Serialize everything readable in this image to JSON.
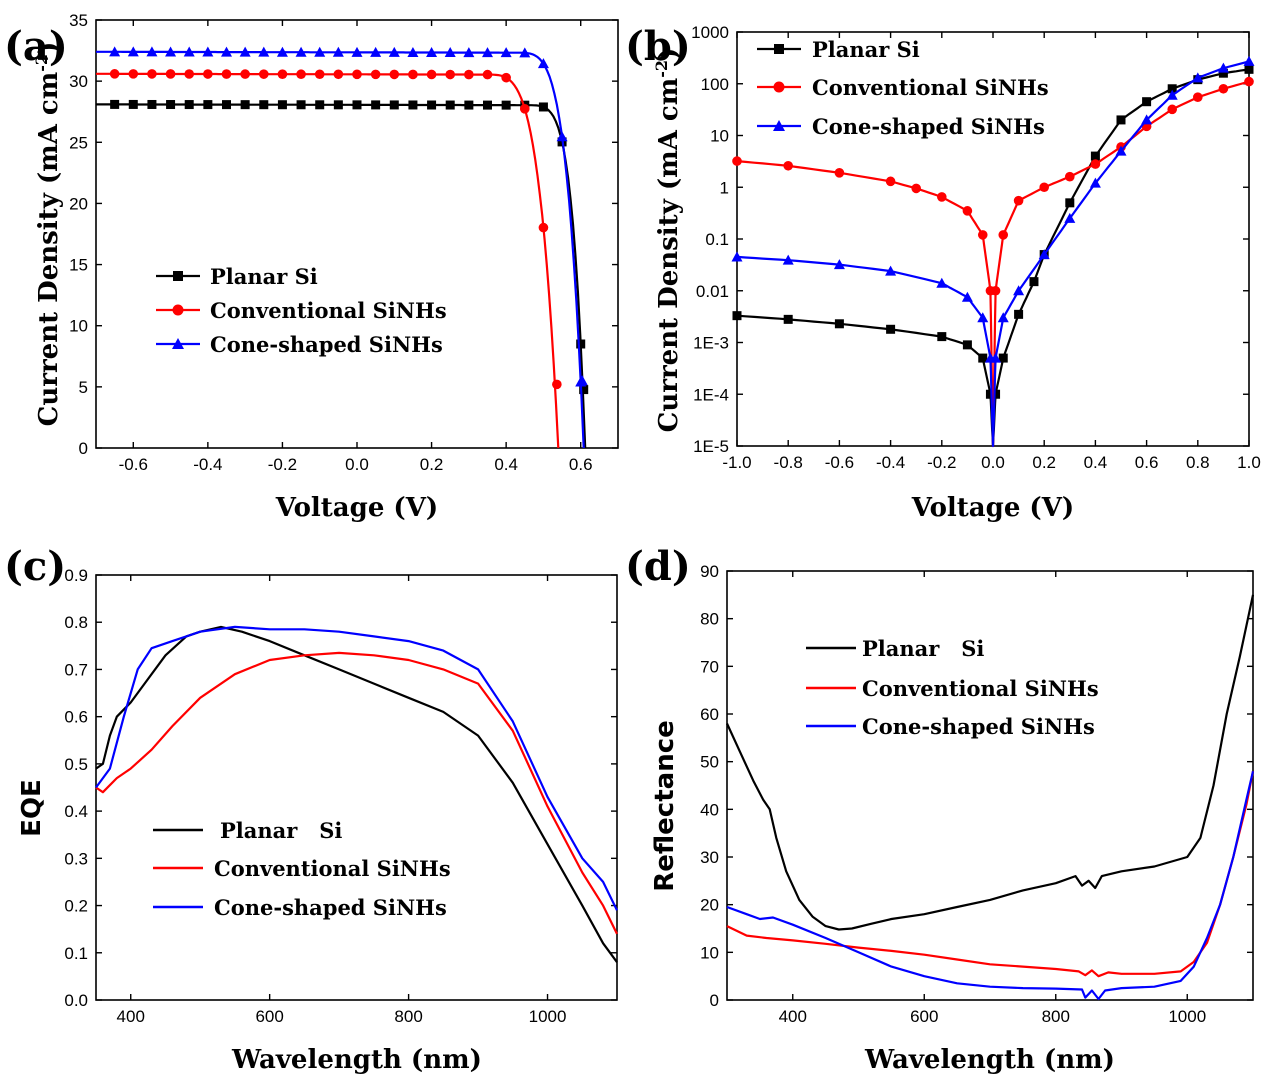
{
  "chart_data": [
    {
      "panel": "(a)",
      "type": "line",
      "xlabel": "Voltage (V)",
      "ylabel": "Current Density (mA cm",
      "ylabel_sup": "-2",
      "ylabel_end": ")",
      "xlim": [
        -0.7,
        0.7
      ],
      "ylim": [
        0,
        35
      ],
      "xticks": [
        -0.6,
        -0.4,
        -0.2,
        0.0,
        0.2,
        0.4,
        0.6
      ],
      "xtick_labels": [
        "-0.6",
        "-0.4",
        "-0.2",
        "0.0",
        "0.2",
        "0.4",
        "0.6"
      ],
      "yticks": [
        0,
        5,
        10,
        15,
        20,
        25,
        30,
        35
      ],
      "ytick_labels": [
        "0",
        "5",
        "10",
        "15",
        "20",
        "25",
        "30",
        "35"
      ],
      "legend": "center-left",
      "series": [
        {
          "name": "Planar Si",
          "color": "#000000",
          "marker": "square",
          "curve": {
            "jsc": 28.1,
            "voc": 0.612,
            "v0": 0.44,
            "n": 5.0,
            "m": 3.5
          }
        },
        {
          "name": "Conventional SiNHs",
          "color": "#ff0000",
          "marker": "circle",
          "curve": {
            "jsc": 30.6,
            "voc": 0.54,
            "v0": 0.34,
            "n": 4.0,
            "m": 3.0
          }
        },
        {
          "name": "Cone-shaped SiNHs",
          "color": "#0000ff",
          "marker": "triangle",
          "curve": {
            "jsc": 32.4,
            "voc": 0.608,
            "v0": 0.42,
            "n": 4.2,
            "m": 3.0
          }
        }
      ]
    },
    {
      "panel": "(b)",
      "type": "line",
      "yscale": "log",
      "xlabel": "Voltage (V)",
      "ylabel": "Current Density (mA cm",
      "ylabel_sup": "-2",
      "ylabel_end": ")",
      "xlim": [
        -1.0,
        1.0
      ],
      "ylim": [
        1e-05,
        1000
      ],
      "xticks": [
        -1.0,
        -0.8,
        -0.6,
        -0.4,
        -0.2,
        0.0,
        0.2,
        0.4,
        0.6,
        0.8,
        1.0
      ],
      "xtick_labels": [
        "-1.0",
        "-0.8",
        "-0.6",
        "-0.4",
        "-0.2",
        "0.0",
        "0.2",
        "0.4",
        "0.6",
        "0.8",
        "1.0"
      ],
      "yticks": [
        1e-05,
        0.0001,
        0.001,
        0.01,
        0.1,
        1,
        10,
        100,
        1000
      ],
      "ytick_labels": [
        "1E-5",
        "1E-4",
        "1E-3",
        "0.01",
        "0.1",
        "1",
        "10",
        "100",
        "1000"
      ],
      "legend": "top-left",
      "series": [
        {
          "name": "Planar Si",
          "color": "#000000",
          "marker": "square",
          "points": [
            [
              -1.0,
              0.0033
            ],
            [
              -0.8,
              0.0028
            ],
            [
              -0.6,
              0.0023
            ],
            [
              -0.4,
              0.0018
            ],
            [
              -0.2,
              0.0013
            ],
            [
              -0.1,
              0.0009
            ],
            [
              -0.04,
              0.0005
            ],
            [
              -0.01,
              0.0001
            ],
            [
              0.0,
              1e-05
            ],
            [
              0.01,
              0.0001
            ],
            [
              0.04,
              0.0005
            ],
            [
              0.1,
              0.0035
            ],
            [
              0.16,
              0.015
            ],
            [
              0.2,
              0.05
            ],
            [
              0.3,
              0.5
            ],
            [
              0.4,
              4.0
            ],
            [
              0.5,
              20
            ],
            [
              0.6,
              45
            ],
            [
              0.7,
              80
            ],
            [
              0.8,
              120
            ],
            [
              0.9,
              160
            ],
            [
              1.0,
              190
            ]
          ]
        },
        {
          "name": "Conventional SiNHs",
          "color": "#ff0000",
          "marker": "circle",
          "points": [
            [
              -1.0,
              3.2
            ],
            [
              -0.8,
              2.6
            ],
            [
              -0.6,
              1.9
            ],
            [
              -0.4,
              1.3
            ],
            [
              -0.3,
              0.95
            ],
            [
              -0.2,
              0.65
            ],
            [
              -0.1,
              0.35
            ],
            [
              -0.04,
              0.12
            ],
            [
              -0.01,
              0.01
            ],
            [
              0.0,
              1e-05
            ],
            [
              0.01,
              0.01
            ],
            [
              0.04,
              0.12
            ],
            [
              0.1,
              0.55
            ],
            [
              0.2,
              1.0
            ],
            [
              0.3,
              1.6
            ],
            [
              0.4,
              2.8
            ],
            [
              0.5,
              6.0
            ],
            [
              0.6,
              15
            ],
            [
              0.7,
              32
            ],
            [
              0.8,
              55
            ],
            [
              0.9,
              80
            ],
            [
              1.0,
              110
            ]
          ]
        },
        {
          "name": "Cone-shaped SiNHs",
          "color": "#0000ff",
          "marker": "triangle",
          "points": [
            [
              -1.0,
              0.045
            ],
            [
              -0.8,
              0.039
            ],
            [
              -0.6,
              0.032
            ],
            [
              -0.4,
              0.024
            ],
            [
              -0.2,
              0.014
            ],
            [
              -0.1,
              0.0075
            ],
            [
              -0.04,
              0.003
            ],
            [
              -0.01,
              0.0005
            ],
            [
              0.0,
              1e-05
            ],
            [
              0.01,
              0.0005
            ],
            [
              0.04,
              0.003
            ],
            [
              0.1,
              0.01
            ],
            [
              0.2,
              0.05
            ],
            [
              0.3,
              0.25
            ],
            [
              0.4,
              1.2
            ],
            [
              0.5,
              5.0
            ],
            [
              0.6,
              20
            ],
            [
              0.7,
              60
            ],
            [
              0.8,
              130
            ],
            [
              0.9,
              200
            ],
            [
              1.0,
              270
            ]
          ]
        }
      ]
    },
    {
      "panel": "(c)",
      "type": "line",
      "xlabel": "Wavelength (nm)",
      "ylabel": "EQE",
      "xlim": [
        350,
        1100
      ],
      "ylim": [
        0,
        0.9
      ],
      "xticks": [
        400,
        600,
        800,
        1000
      ],
      "xtick_labels": [
        "400",
        "600",
        "800",
        "1000"
      ],
      "yticks": [
        0,
        0.1,
        0.2,
        0.3,
        0.4,
        0.5,
        0.6,
        0.7,
        0.8,
        0.9
      ],
      "ytick_labels": [
        "0.0",
        "0.1",
        "0.2",
        "0.3",
        "0.4",
        "0.5",
        "0.6",
        "0.7",
        "0.8",
        "0.9"
      ],
      "legend": "lower-left",
      "series": [
        {
          "name": "Planar   Si",
          "color": "#000000",
          "points": [
            [
              350,
              0.49
            ],
            [
              360,
              0.5
            ],
            [
              370,
              0.56
            ],
            [
              380,
              0.6
            ],
            [
              400,
              0.63
            ],
            [
              420,
              0.67
            ],
            [
              450,
              0.73
            ],
            [
              480,
              0.77
            ],
            [
              500,
              0.78
            ],
            [
              530,
              0.79
            ],
            [
              560,
              0.78
            ],
            [
              600,
              0.76
            ],
            [
              650,
              0.73
            ],
            [
              700,
              0.7
            ],
            [
              750,
              0.67
            ],
            [
              800,
              0.64
            ],
            [
              850,
              0.61
            ],
            [
              900,
              0.56
            ],
            [
              950,
              0.46
            ],
            [
              1000,
              0.33
            ],
            [
              1050,
              0.2
            ],
            [
              1080,
              0.12
            ],
            [
              1100,
              0.08
            ]
          ]
        },
        {
          "name": "Conventional SiNHs",
          "color": "#ff0000",
          "points": [
            [
              350,
              0.45
            ],
            [
              360,
              0.44
            ],
            [
              380,
              0.47
            ],
            [
              400,
              0.49
            ],
            [
              430,
              0.53
            ],
            [
              460,
              0.58
            ],
            [
              500,
              0.64
            ],
            [
              550,
              0.69
            ],
            [
              600,
              0.72
            ],
            [
              650,
              0.73
            ],
            [
              700,
              0.735
            ],
            [
              750,
              0.73
            ],
            [
              800,
              0.72
            ],
            [
              850,
              0.7
            ],
            [
              900,
              0.67
            ],
            [
              950,
              0.57
            ],
            [
              1000,
              0.41
            ],
            [
              1050,
              0.27
            ],
            [
              1080,
              0.2
            ],
            [
              1100,
              0.14
            ]
          ]
        },
        {
          "name": "Cone-shaped SiNHs",
          "color": "#0000ff",
          "points": [
            [
              350,
              0.45
            ],
            [
              370,
              0.49
            ],
            [
              390,
              0.6
            ],
            [
              410,
              0.7
            ],
            [
              430,
              0.745
            ],
            [
              460,
              0.76
            ],
            [
              500,
              0.78
            ],
            [
              550,
              0.79
            ],
            [
              600,
              0.785
            ],
            [
              650,
              0.785
            ],
            [
              700,
              0.78
            ],
            [
              750,
              0.77
            ],
            [
              800,
              0.76
            ],
            [
              850,
              0.74
            ],
            [
              900,
              0.7
            ],
            [
              950,
              0.59
            ],
            [
              1000,
              0.43
            ],
            [
              1050,
              0.3
            ],
            [
              1080,
              0.25
            ],
            [
              1100,
              0.19
            ]
          ]
        }
      ]
    },
    {
      "panel": "(d)",
      "type": "line",
      "xlabel": "Wavelength (nm)",
      "ylabel": "Reflectance",
      "xlim": [
        300,
        1100
      ],
      "ylim": [
        0,
        90
      ],
      "xticks": [
        400,
        600,
        800,
        1000
      ],
      "xtick_labels": [
        "400",
        "600",
        "800",
        "1000"
      ],
      "yticks": [
        0,
        10,
        20,
        30,
        40,
        50,
        60,
        70,
        80,
        90
      ],
      "ytick_labels": [
        "0",
        "10",
        "20",
        "30",
        "40",
        "50",
        "60",
        "70",
        "80",
        "90"
      ],
      "legend": "upper-left",
      "series": [
        {
          "name": "Planar   Si",
          "color": "#000000",
          "points": [
            [
              300,
              58
            ],
            [
              320,
              52
            ],
            [
              340,
              46
            ],
            [
              355,
              42
            ],
            [
              365,
              40
            ],
            [
              375,
              34
            ],
            [
              390,
              27
            ],
            [
              410,
              21
            ],
            [
              430,
              17.5
            ],
            [
              450,
              15.5
            ],
            [
              470,
              14.8
            ],
            [
              490,
              15
            ],
            [
              520,
              16
            ],
            [
              550,
              17
            ],
            [
              600,
              18
            ],
            [
              650,
              19.5
            ],
            [
              700,
              21
            ],
            [
              750,
              23
            ],
            [
              800,
              24.5
            ],
            [
              830,
              26
            ],
            [
              840,
              24
            ],
            [
              850,
              25
            ],
            [
              860,
              23.5
            ],
            [
              870,
              26
            ],
            [
              900,
              27
            ],
            [
              950,
              28
            ],
            [
              1000,
              30
            ],
            [
              1020,
              34
            ],
            [
              1040,
              45
            ],
            [
              1060,
              60
            ],
            [
              1080,
              72
            ],
            [
              1100,
              85
            ]
          ]
        },
        {
          "name": "Conventional SiNHs",
          "color": "#ff0000",
          "points": [
            [
              300,
              15.5
            ],
            [
              330,
              13.5
            ],
            [
              360,
              13
            ],
            [
              400,
              12.5
            ],
            [
              450,
              11.8
            ],
            [
              500,
              11
            ],
            [
              550,
              10.3
            ],
            [
              600,
              9.5
            ],
            [
              650,
              8.5
            ],
            [
              700,
              7.5
            ],
            [
              750,
              7
            ],
            [
              800,
              6.5
            ],
            [
              835,
              6
            ],
            [
              845,
              5.2
            ],
            [
              855,
              6.2
            ],
            [
              865,
              5
            ],
            [
              880,
              5.8
            ],
            [
              900,
              5.5
            ],
            [
              950,
              5.5
            ],
            [
              990,
              6
            ],
            [
              1010,
              8
            ],
            [
              1030,
              12
            ],
            [
              1050,
              20
            ],
            [
              1070,
              30
            ],
            [
              1090,
              41
            ],
            [
              1100,
              48
            ]
          ]
        },
        {
          "name": "Cone-shaped SiNHs",
          "color": "#0000ff",
          "points": [
            [
              300,
              19.5
            ],
            [
              330,
              18
            ],
            [
              350,
              17
            ],
            [
              370,
              17.3
            ],
            [
              400,
              15.8
            ],
            [
              450,
              13
            ],
            [
              500,
              10
            ],
            [
              550,
              7
            ],
            [
              600,
              5
            ],
            [
              650,
              3.5
            ],
            [
              700,
              2.8
            ],
            [
              750,
              2.5
            ],
            [
              800,
              2.4
            ],
            [
              840,
              2.2
            ],
            [
              845,
              0.5
            ],
            [
              855,
              2
            ],
            [
              865,
              0.2
            ],
            [
              875,
              2
            ],
            [
              900,
              2.5
            ],
            [
              950,
              2.8
            ],
            [
              990,
              4
            ],
            [
              1010,
              7
            ],
            [
              1030,
              13
            ],
            [
              1050,
              20
            ],
            [
              1070,
              30
            ],
            [
              1090,
              42
            ],
            [
              1100,
              48
            ]
          ]
        }
      ]
    }
  ]
}
